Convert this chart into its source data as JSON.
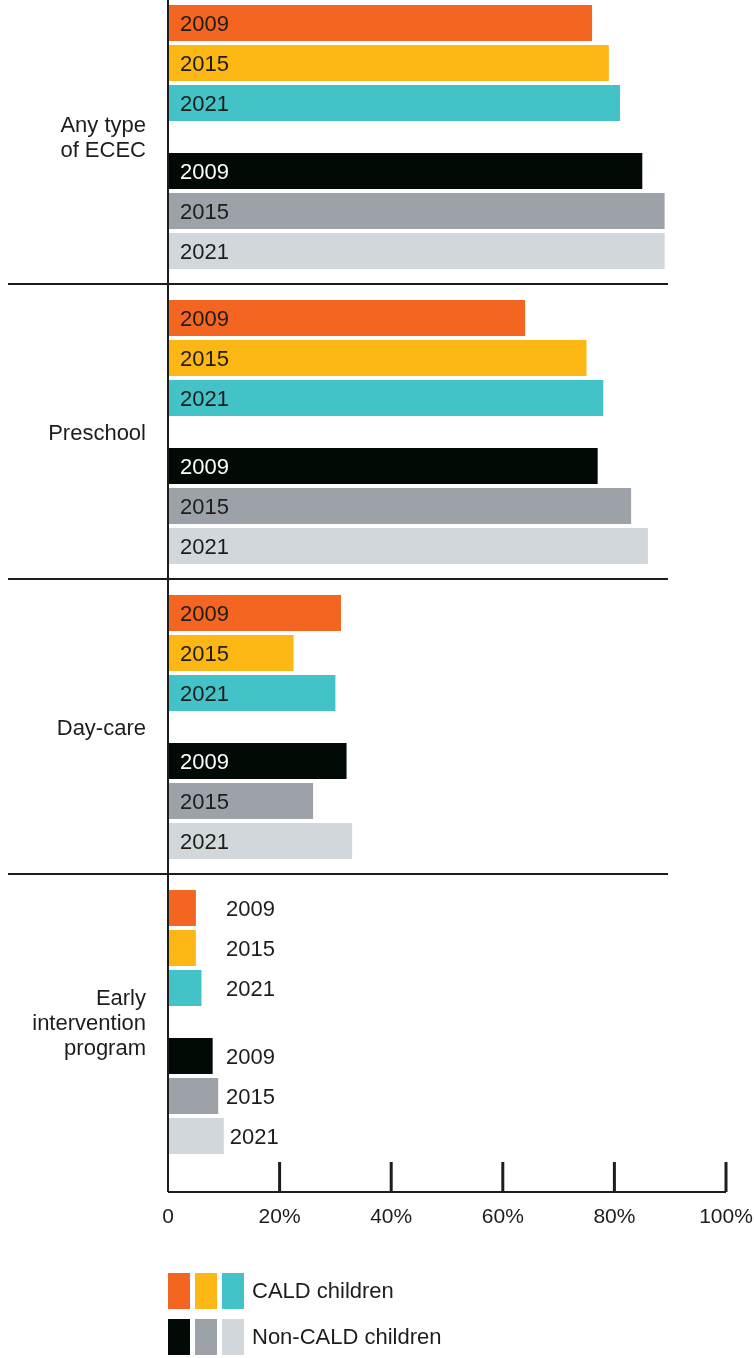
{
  "chart_data": {
    "type": "bar",
    "orientation": "horizontal",
    "categories": [
      "Any type of ECEC",
      "Preschool",
      "Day-care",
      "Early intervention program"
    ],
    "series": [
      {
        "name": "2009",
        "color": "#f46522",
        "values": [
          76,
          64,
          31,
          5
        ]
      },
      {
        "name": "2015",
        "color": "#fdb714",
        "values": [
          79,
          75,
          22.5,
          5
        ]
      },
      {
        "name": "2021",
        "color": "#43c2c8",
        "values": [
          81,
          78,
          30,
          6
        ]
      },
      {
        "name": "2009",
        "color": "#020a06",
        "values": [
          85,
          77,
          32,
          8
        ]
      },
      {
        "name": "2015",
        "color": "#9ca2a8",
        "values": [
          89,
          83,
          26,
          9
        ]
      },
      {
        "name": "2021",
        "color": "#d2d7db",
        "values": [
          89,
          86,
          33,
          10
        ]
      }
    ],
    "xlim": [
      0,
      100
    ],
    "xticks": [
      0,
      {
        "value": 20,
        "label": "20%"
      },
      {
        "value": 40,
        "label": "40%"
      },
      {
        "value": 60,
        "label": "60%"
      },
      {
        "value": 80,
        "label": "80%"
      },
      {
        "value": 100,
        "label": "100%"
      }
    ],
    "annotations": [
      "CALD children",
      "Non-CALD children"
    ]
  }
}
